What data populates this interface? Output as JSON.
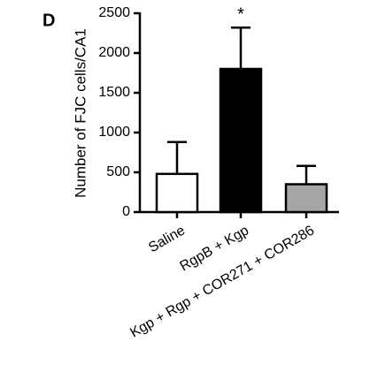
{
  "chart_data": {
    "type": "bar",
    "panel_label": "D",
    "ylabel": "Number of FJC cells/CA1",
    "categories": [
      "Saline",
      "RgpB + Kgp",
      "Kgp + Rgp + COR271 + COR286"
    ],
    "values": [
      480,
      1800,
      350
    ],
    "errors": [
      400,
      520,
      230
    ],
    "colors": [
      "#ffffff",
      "#000000",
      "#a6a6a6"
    ],
    "annotations": [
      {
        "category": 1,
        "text": "*"
      }
    ],
    "ylim": [
      0,
      2500
    ],
    "yticks": [
      0,
      500,
      1000,
      1500,
      2000,
      2500
    ]
  }
}
